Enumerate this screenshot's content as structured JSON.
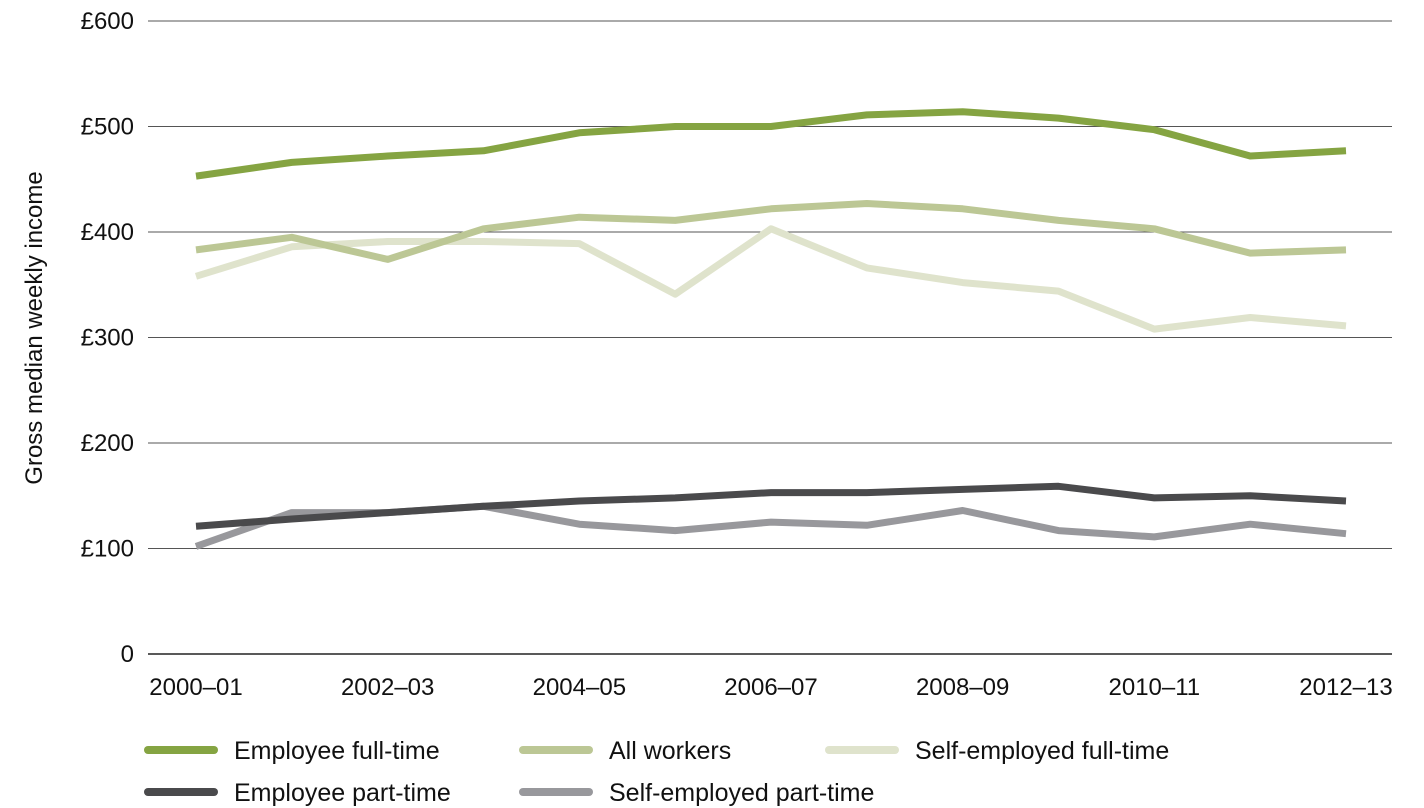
{
  "chart_data": {
    "type": "line",
    "title": "",
    "xlabel": "",
    "ylabel": "Gross median weekly income",
    "x": [
      "2000-01",
      "2001-02",
      "2002-03",
      "2003-04",
      "2004-05",
      "2005-06",
      "2006-07",
      "2007-08",
      "2008-09",
      "2009-10",
      "2010-11",
      "2011-12",
      "2012-13"
    ],
    "x_tick_labels": [
      "2000–01",
      "2002–03",
      "2004–05",
      "2006–07",
      "2008–09",
      "2010–11",
      "2012–13"
    ],
    "y_tick_labels": [
      "0",
      "£100",
      "£200",
      "£300",
      "£400",
      "£500",
      "£600"
    ],
    "ylim": [
      0,
      600
    ],
    "grid": true,
    "legend_position": "bottom",
    "series": [
      {
        "name": "Employee full-time",
        "color": "#85a442",
        "values": [
          453,
          466,
          472,
          477,
          494,
          500,
          500,
          511,
          514,
          508,
          497,
          472,
          477
        ]
      },
      {
        "name": "All workers",
        "color": "#bcc795",
        "values": [
          383,
          395,
          374,
          403,
          414,
          411,
          422,
          427,
          422,
          411,
          403,
          380,
          383
        ]
      },
      {
        "name": "Self-employed full-time",
        "color": "#dfe3cc",
        "values": [
          358,
          386,
          391,
          391,
          389,
          341,
          403,
          366,
          352,
          344,
          308,
          319,
          311
        ]
      },
      {
        "name": "Employee part-time",
        "color": "#4a4a4c",
        "values": [
          121,
          128,
          134,
          140,
          145,
          148,
          153,
          153,
          156,
          159,
          148,
          150,
          145
        ]
      },
      {
        "name": "Self-employed part-time",
        "color": "#98989c",
        "values": [
          102,
          134,
          134,
          140,
          123,
          117,
          125,
          122,
          136,
          117,
          111,
          123,
          114
        ]
      }
    ]
  }
}
